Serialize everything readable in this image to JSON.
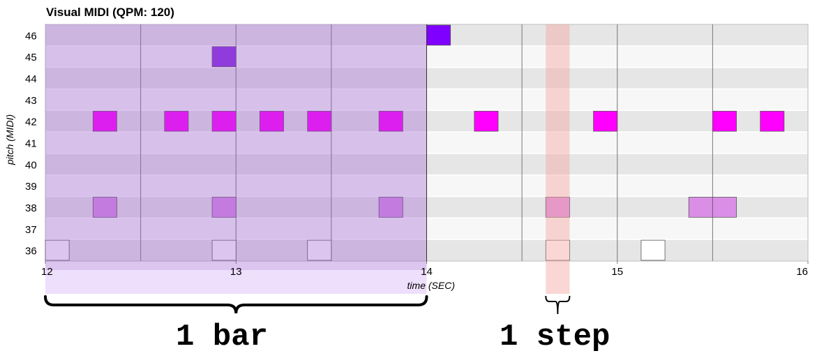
{
  "chart_data": {
    "type": "piano-roll",
    "title": "Visual MIDI (QPM: 120)",
    "xlabel": "time (SEC)",
    "ylabel": "pitch (MIDI)",
    "xlim": [
      12,
      16
    ],
    "ylim": [
      36,
      46
    ],
    "x_ticks": [
      "12",
      "13",
      "14",
      "15",
      "16"
    ],
    "y_ticks": [
      "46",
      "45",
      "44",
      "43",
      "42",
      "41",
      "40",
      "39",
      "38",
      "37",
      "36"
    ],
    "bar_lines": [
      12.5,
      13.0,
      13.5,
      14.0,
      14.5,
      15.0,
      15.5
    ],
    "step_seconds": 0.125,
    "notes": [
      {
        "pitch": 46,
        "start": 14.0,
        "end": 14.125,
        "color": "#8000ff"
      },
      {
        "pitch": 45,
        "start": 12.875,
        "end": 13.0,
        "color": "#8a2be2"
      },
      {
        "pitch": 42,
        "start": 12.25,
        "end": 12.375,
        "color": "#ff00ff"
      },
      {
        "pitch": 42,
        "start": 12.625,
        "end": 12.75,
        "color": "#ff00ff"
      },
      {
        "pitch": 42,
        "start": 12.875,
        "end": 13.0,
        "color": "#ff00ff"
      },
      {
        "pitch": 42,
        "start": 13.125,
        "end": 13.25,
        "color": "#ff00ff"
      },
      {
        "pitch": 42,
        "start": 13.375,
        "end": 13.5,
        "color": "#ff00ff"
      },
      {
        "pitch": 42,
        "start": 13.75,
        "end": 13.875,
        "color": "#ff00ff"
      },
      {
        "pitch": 42,
        "start": 14.25,
        "end": 14.375,
        "color": "#ff00ff"
      },
      {
        "pitch": 42,
        "start": 14.875,
        "end": 15.0,
        "color": "#ff00ff"
      },
      {
        "pitch": 42,
        "start": 15.5,
        "end": 15.625,
        "color": "#ff00ff"
      },
      {
        "pitch": 42,
        "start": 15.75,
        "end": 15.875,
        "color": "#ff00ff"
      },
      {
        "pitch": 38,
        "start": 12.25,
        "end": 12.375,
        "color": "#da8ee6"
      },
      {
        "pitch": 38,
        "start": 12.875,
        "end": 13.0,
        "color": "#da8ee6"
      },
      {
        "pitch": 38,
        "start": 13.75,
        "end": 13.875,
        "color": "#da8ee6"
      },
      {
        "pitch": 38,
        "start": 14.625,
        "end": 14.75,
        "color": "#da8ee6"
      },
      {
        "pitch": 38,
        "start": 15.375,
        "end": 15.5,
        "color": "#da8ee6"
      },
      {
        "pitch": 38,
        "start": 15.5,
        "end": 15.625,
        "color": "#da8ee6"
      },
      {
        "pitch": 36,
        "start": 12.0,
        "end": 12.125,
        "color": "#ffffff"
      },
      {
        "pitch": 36,
        "start": 12.875,
        "end": 13.0,
        "color": "#ffffff"
      },
      {
        "pitch": 36,
        "start": 13.375,
        "end": 13.5,
        "color": "#ffffff"
      },
      {
        "pitch": 36,
        "start": 14.625,
        "end": 14.75,
        "color": "#ffffff"
      },
      {
        "pitch": 36,
        "start": 15.125,
        "end": 15.25,
        "color": "#ffffff"
      }
    ],
    "bar_highlight": {
      "start": 12.0,
      "end": 14.0,
      "color": "#9b59d0",
      "opacity": 0.35
    },
    "step_highlight": {
      "start": 14.625,
      "end": 14.75,
      "color": "#f4a7a0",
      "opacity": 0.45
    },
    "row_colors": {
      "even": "#e6e6e6",
      "odd": "#f7f7f7"
    },
    "annotations": {
      "bar_label": "1 bar",
      "step_label": "1 step"
    }
  }
}
